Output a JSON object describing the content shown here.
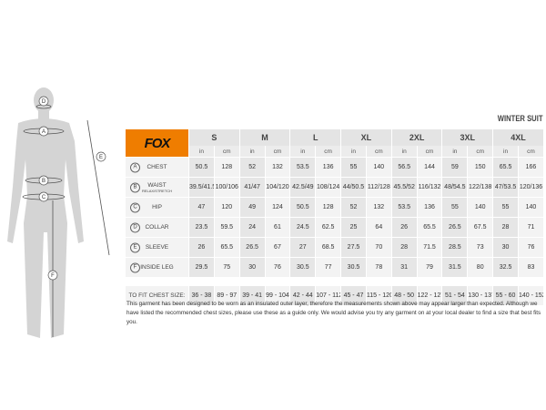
{
  "title": "WINTER SUIT",
  "brand": "FOX",
  "figure_labels": [
    "A",
    "B",
    "C",
    "D",
    "E",
    "F"
  ],
  "sizes": [
    "S",
    "M",
    "L",
    "XL",
    "2XL",
    "3XL",
    "4XL"
  ],
  "units": [
    "in",
    "cm"
  ],
  "rows": [
    {
      "letter": "A",
      "label": "CHEST",
      "sub": "",
      "values": [
        "50.5",
        "128",
        "52",
        "132",
        "53.5",
        "136",
        "55",
        "140",
        "56.5",
        "144",
        "59",
        "150",
        "65.5",
        "166"
      ]
    },
    {
      "letter": "B",
      "label": "WAIST",
      "sub": "RELAX/STRETCH",
      "values": [
        "39.5/41.5",
        "100/106",
        "41/47",
        "104/120",
        "42.5/49",
        "108/124",
        "44/50.5",
        "112/128",
        "45.5/52",
        "116/132",
        "48/54.5",
        "122/138",
        "47/53.5",
        "120/136"
      ]
    },
    {
      "letter": "C",
      "label": "HIP",
      "sub": "",
      "values": [
        "47",
        "120",
        "49",
        "124",
        "50.5",
        "128",
        "52",
        "132",
        "53.5",
        "136",
        "55",
        "140",
        "55",
        "140"
      ]
    },
    {
      "letter": "D",
      "label": "COLLAR",
      "sub": "",
      "values": [
        "23.5",
        "59.5",
        "24",
        "61",
        "24.5",
        "62.5",
        "25",
        "64",
        "26",
        "65.5",
        "26.5",
        "67.5",
        "28",
        "71"
      ]
    },
    {
      "letter": "E",
      "label": "SLEEVE",
      "sub": "",
      "values": [
        "26",
        "65.5",
        "26.5",
        "67",
        "27",
        "68.5",
        "27.5",
        "70",
        "28",
        "71.5",
        "28.5",
        "73",
        "30",
        "76"
      ]
    },
    {
      "letter": "F",
      "label": "INSIDE LEG",
      "sub": "",
      "values": [
        "29.5",
        "75",
        "30",
        "76",
        "30.5",
        "77",
        "30.5",
        "78",
        "31",
        "79",
        "31.5",
        "80",
        "32.5",
        "83"
      ]
    }
  ],
  "fit": {
    "label": "TO FIT CHEST SIZE:",
    "values": [
      "36 - 38",
      "89 - 97",
      "39 - 41",
      "99 - 104",
      "42 - 44",
      "107 - 112",
      "45 - 47",
      "115 - 120",
      "48 - 50",
      "122 - 127",
      "51 - 54",
      "130 - 137",
      "55 - 60",
      "140 - 152"
    ]
  },
  "note": "This garment has been designed to be worn as an insulated outer layer, therefore the measurements shown above may appear larger than expected. Although we have listed the recommended chest sizes, please use these as a guide only. We would advise you try any garment on at your local dealer to find a size that best fits you."
}
